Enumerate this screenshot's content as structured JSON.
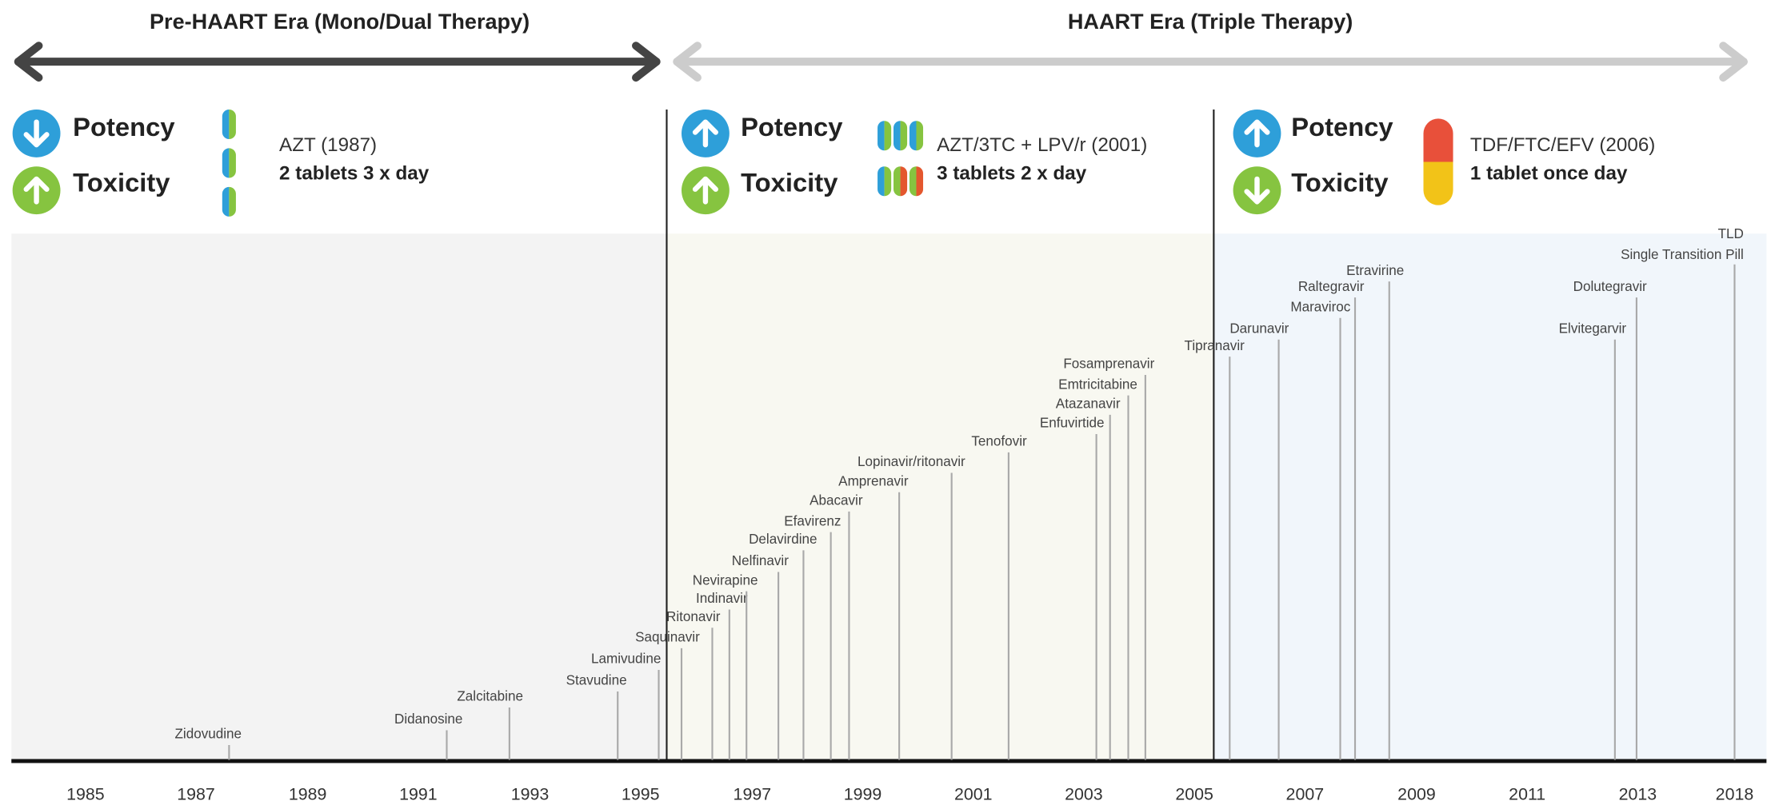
{
  "eras": [
    {
      "title": "Pre-HAART Era (Mono/Dual Therapy)"
    },
    {
      "title": "HAART Era (Triple Therapy)"
    }
  ],
  "panels": [
    {
      "potency": "Potency",
      "toxicity": "Toxicity",
      "regimen": "AZT (1987)",
      "dosing": "2 tablets 3 x day"
    },
    {
      "potency": "Potency",
      "toxicity": "Toxicity",
      "regimen": "AZT/3TC + LPV/r (2001)",
      "dosing": "3 tablets 2 x day"
    },
    {
      "potency": "Potency",
      "toxicity": "Toxicity",
      "regimen": "TDF/FTC/EFV (2006)",
      "dosing": "1 tablet once day"
    }
  ],
  "drugs": [
    {
      "label": "Zidovudine"
    },
    {
      "label": "Didanosine"
    },
    {
      "label": "Zalcitabine"
    },
    {
      "label": "Stavudine"
    },
    {
      "label": "Lamivudine"
    },
    {
      "label": "Saquinavir"
    },
    {
      "label": "Ritonavir"
    },
    {
      "label": "Indinavir"
    },
    {
      "label": "Nevirapine"
    },
    {
      "label": "Nelfinavir"
    },
    {
      "label": "Delavirdine"
    },
    {
      "label": "Efavirenz"
    },
    {
      "label": "Abacavir"
    },
    {
      "label": "Amprenavir"
    },
    {
      "label": "Lopinavir/ritonavir"
    },
    {
      "label": "Tenofovir"
    },
    {
      "label": "Enfuvirtide"
    },
    {
      "label": "Atazanavir"
    },
    {
      "label": "Emtricitabine"
    },
    {
      "label": "Fosamprenavir"
    },
    {
      "label": "Tipranavir"
    },
    {
      "label": "Darunavir"
    },
    {
      "label": "Maraviroc"
    },
    {
      "label": "Raltegravir"
    },
    {
      "label": "Etravirine"
    },
    {
      "label": "Elvitegarvir"
    },
    {
      "label": "Dolutegravir"
    },
    {
      "label": "TLD",
      "sublabel": "Single Transition Pill"
    }
  ],
  "years": [
    "1985",
    "1987",
    "1989",
    "1991",
    "1993",
    "1995",
    "1997",
    "1999",
    "2001",
    "2003",
    "2005",
    "2007",
    "2009",
    "2011",
    "2013",
    "2018"
  ]
}
